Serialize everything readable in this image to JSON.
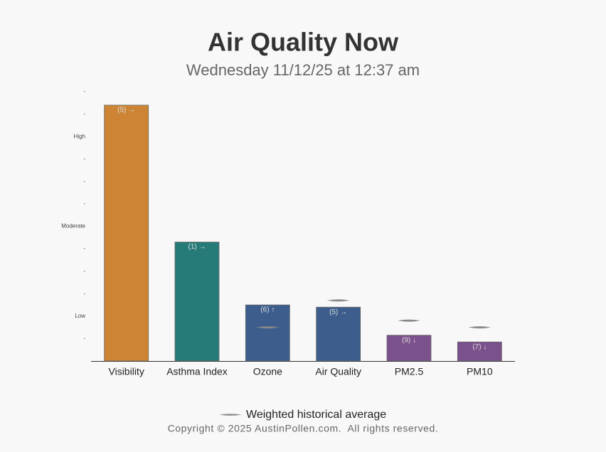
{
  "chart_data": {
    "type": "bar",
    "title": "Air Quality Now",
    "subtitle": "Wednesday 11/12/25 at 12:37 am",
    "categories": [
      "Visibility",
      "Asthma Index",
      "Ozone",
      "Air Quality",
      "PM2.5",
      "PM10"
    ],
    "values": [
      11.4,
      5.3,
      2.5,
      2.4,
      1.15,
      0.85
    ],
    "colors": [
      "#cd8535",
      "#267a78",
      "#3d5e8c",
      "#3d5e8c",
      "#7b518c",
      "#7b518c"
    ],
    "annotations": [
      "(5) →",
      "(1) →",
      "(6) ↑",
      "(5) →",
      "(9) ↓",
      "(7) ↓"
    ],
    "historical": {
      "name": "Weighted historical average",
      "color": "#888888",
      "values": [
        null,
        null,
        1.5,
        2.7,
        1.8,
        1.5
      ]
    },
    "ylim": [
      0,
      12
    ],
    "yticks": [
      {
        "value": 1,
        "label": "-"
      },
      {
        "value": 2,
        "label": "Low"
      },
      {
        "value": 3,
        "label": "-"
      },
      {
        "value": 4,
        "label": "-"
      },
      {
        "value": 5,
        "label": "-"
      },
      {
        "value": 6,
        "label": "Moderate"
      },
      {
        "value": 7,
        "label": "-"
      },
      {
        "value": 8,
        "label": "-"
      },
      {
        "value": 9,
        "label": "-"
      },
      {
        "value": 10,
        "label": "High"
      },
      {
        "value": 11,
        "label": "-"
      },
      {
        "value": 12,
        "label": "-"
      }
    ]
  },
  "footer": {
    "copyright": "Copyright © 2025 AustinPollen.com.  All rights reserved."
  }
}
